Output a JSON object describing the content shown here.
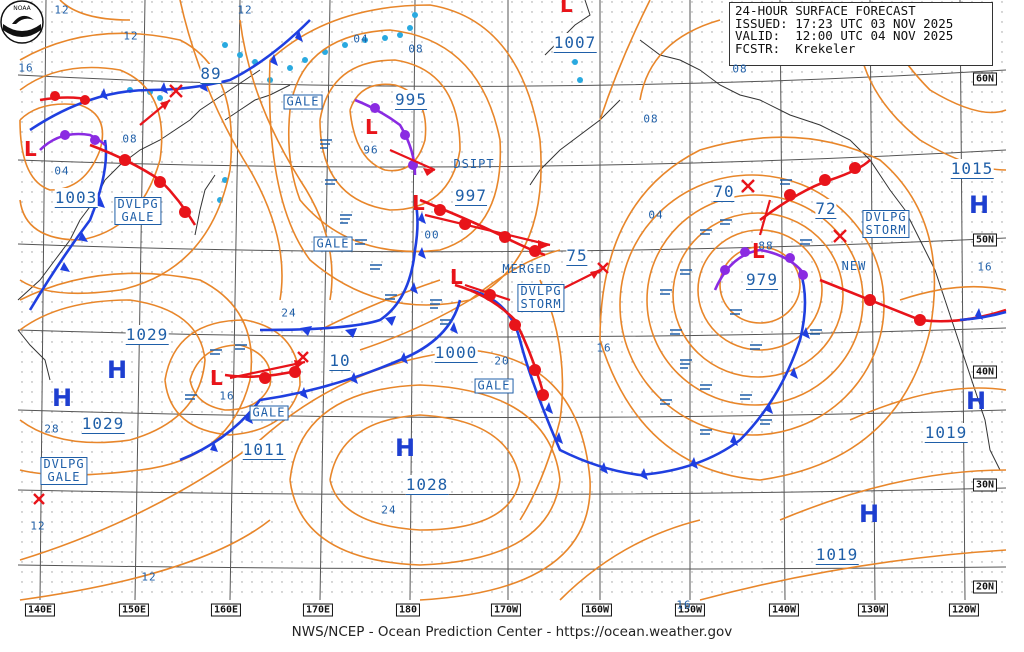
{
  "header": {
    "line1": "24-HOUR SURFACE FORECAST",
    "line2": "ISSUED: 17:23 UTC 03 NOV 2025",
    "line3": "VALID:  12:00 UTC 04 NOV 2025",
    "line4": "FCSTR:  Krekeler",
    "logo_text": "NOAA"
  },
  "footer": "NWS/NCEP - Ocean Prediction Center - https://ocean.weather.gov",
  "latitudes": [
    "60N",
    "50N",
    "40N",
    "30N",
    "20N"
  ],
  "longitudes": [
    "140E",
    "150E",
    "160E",
    "170E",
    "180",
    "170W",
    "160W",
    "150W",
    "140W",
    "130W",
    "120W"
  ],
  "pressure_centers": [
    {
      "label": "1003",
      "kind": "low-value"
    },
    {
      "label": "89",
      "kind": "low-value"
    },
    {
      "label": "995",
      "kind": "low-value"
    },
    {
      "label": "997",
      "kind": "low-value"
    },
    {
      "label": "1007",
      "kind": "low-value"
    },
    {
      "label": "75",
      "kind": "low-value"
    },
    {
      "label": "10",
      "kind": "low-value"
    },
    {
      "label": "1000",
      "kind": "low-value"
    },
    {
      "label": "1011",
      "kind": "low-value"
    },
    {
      "label": "1029",
      "kind": "high-value"
    },
    {
      "label": "1029",
      "kind": "high-value"
    },
    {
      "label": "1028",
      "kind": "high-value"
    },
    {
      "label": "979",
      "kind": "low-value"
    },
    {
      "label": "70",
      "kind": "low-value"
    },
    {
      "label": "72",
      "kind": "low-value"
    },
    {
      "label": "1015",
      "kind": "high-value"
    },
    {
      "label": "1019",
      "kind": "high-value"
    },
    {
      "label": "1019",
      "kind": "high-value"
    }
  ],
  "high_symbol": "H",
  "warnings": [
    {
      "text": "DVLPG\nGALE"
    },
    {
      "text": "GALE"
    },
    {
      "text": "GALE"
    },
    {
      "text": "DVLPG\nSTORM"
    },
    {
      "text": "GALE"
    },
    {
      "text": "GALE"
    },
    {
      "text": "DVLPG\nGALE"
    },
    {
      "text": "DVLPG\nSTORM"
    }
  ],
  "annotations": {
    "dsipt": "DSIPT",
    "merged": "MERGED",
    "new": "NEW"
  },
  "isobar_labels": [
    "12",
    "12",
    "16",
    "12",
    "04",
    "08",
    "08",
    "04",
    "96",
    "00",
    "24",
    "16",
    "20",
    "16",
    "24",
    "28",
    "12",
    "12",
    "16",
    "08",
    "16",
    "88",
    "08",
    "04"
  ],
  "colors": {
    "isobar": "#e8862a",
    "front_cold": "#1f3fe0",
    "front_warm": "#e8141a",
    "occluded": "#8a2be2",
    "grid": "#555555",
    "label": "#1f5fa8",
    "high": "#1e3fd0",
    "ice": "#29a9e0"
  }
}
